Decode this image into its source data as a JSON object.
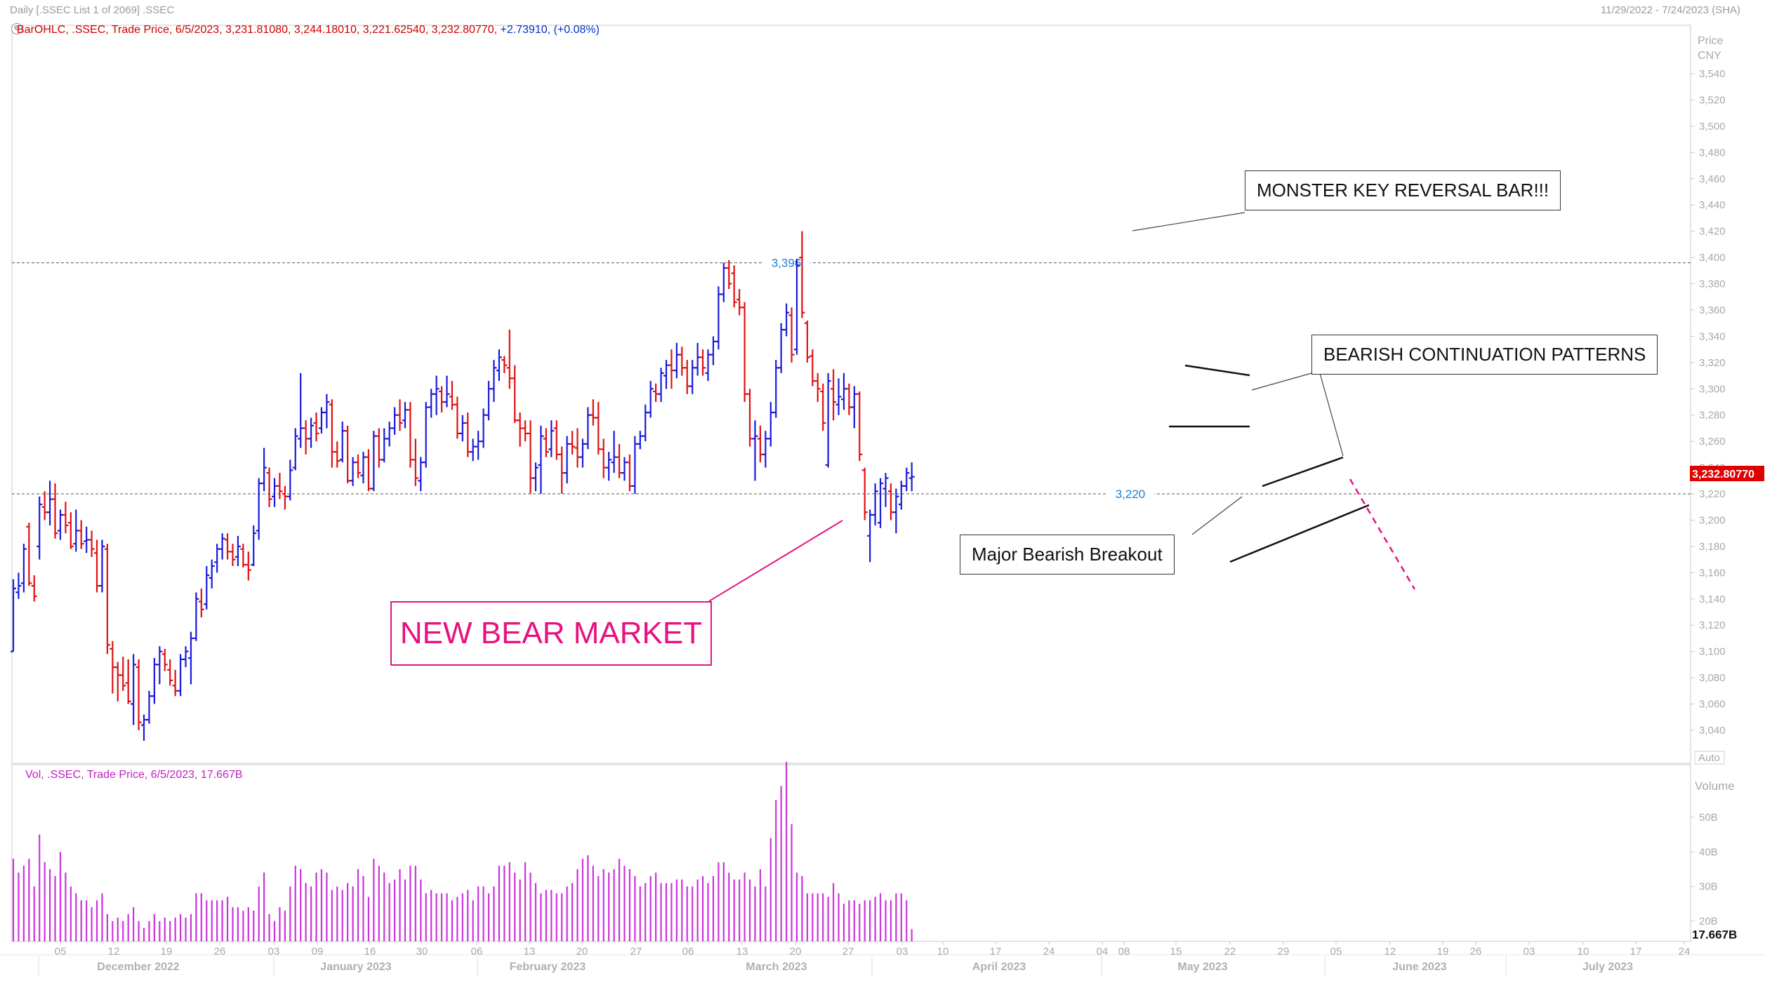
{
  "header": {
    "title": "Daily [.SSEC List 1 of 2069] .SSEC",
    "date_range": "11/29/2022 - 7/24/2023 (SHA)"
  },
  "price_panel": {
    "info": "BarOHLC, .SSEC, Trade Price, 6/5/2023, 3,231.81080, 3,244.18010, 3,221.62540, 3,232.80770,",
    "info_change": "+2.73910, (+0.08%)",
    "axis_title_1": "Price",
    "axis_title_2": "CNY",
    "auto_label": "Auto",
    "last_price_label": "3,232.80770",
    "level_labels": [
      "3,396",
      "3,220"
    ]
  },
  "volume_panel": {
    "info": "Vol, .SSEC, Trade Price, 6/5/2023, 17.667B",
    "axis_title": "Volume",
    "last_volume_label": "17.667B"
  },
  "annotations": {
    "monster": "MONSTER KEY REVERSAL BAR!!!",
    "bearish_cont": "BEARISH CONTINUATION PATTERNS",
    "breakout": "Major Bearish Breakout",
    "bear_market": "NEW BEAR MARKET"
  },
  "colors": {
    "up": "#1a1adc",
    "down": "#e01010",
    "volume": "#cc33dd",
    "accent": "#e8117f",
    "level_label": "#1a7fd4",
    "last_price_bg": "#e00000"
  },
  "chart_data": [
    {
      "type": "ohlc",
      "title": "Daily .SSEC",
      "ylabel": "Price CNY",
      "ylim": [
        3020,
        3560
      ],
      "y_ticks": [
        3040,
        3060,
        3080,
        3100,
        3120,
        3140,
        3160,
        3180,
        3200,
        3220,
        3240,
        3260,
        3280,
        3300,
        3320,
        3340,
        3360,
        3380,
        3400,
        3420,
        3440,
        3460,
        3480,
        3500,
        3520,
        3540
      ],
      "y_tick_labels": [
        "3,040",
        "3,060",
        "3,080",
        "3,100",
        "3,120",
        "3,140",
        "3,160",
        "3,180",
        "3,200",
        "3,220",
        "3,240",
        "3,260",
        "3,280",
        "3,300",
        "3,320",
        "3,340",
        "3,360",
        "3,380",
        "3,400",
        "3,420",
        "3,440",
        "3,460",
        "3,480",
        "3,500",
        "3,520",
        "3,540"
      ],
      "x_tick_labels": [
        "05",
        "12",
        "19",
        "26",
        "03",
        "09",
        "16",
        "30",
        "06",
        "13",
        "20",
        "27",
        "06",
        "13",
        "20",
        "27",
        "03",
        "10",
        "17",
        "24",
        "04",
        "08",
        "15",
        "22",
        "29",
        "05",
        "12",
        "19",
        "26",
        "03",
        "10",
        "17",
        "24"
      ],
      "month_labels": [
        "December 2022",
        "January 2023",
        "February 2023",
        "March 2023",
        "April 2023",
        "May 2023",
        "June 2023",
        "July 2023"
      ],
      "horizontal_levels": [
        3396,
        3220
      ],
      "bars": [
        [
          3100,
          3155,
          3100,
          3148
        ],
        [
          3145,
          3160,
          3140,
          3150
        ],
        [
          3152,
          3182,
          3145,
          3178
        ],
        [
          3195,
          3198,
          3150,
          3152
        ],
        [
          3150,
          3158,
          3138,
          3142
        ],
        [
          3180,
          3218,
          3170,
          3212
        ],
        [
          3210,
          3222,
          3200,
          3206
        ],
        [
          3206,
          3230,
          3196,
          3216
        ],
        [
          3216,
          3228,
          3186,
          3190
        ],
        [
          3192,
          3208,
          3185,
          3204
        ],
        [
          3204,
          3214,
          3190,
          3196
        ],
        [
          3198,
          3206,
          3178,
          3180
        ],
        [
          3182,
          3208,
          3176,
          3192
        ],
        [
          3192,
          3200,
          3178,
          3182
        ],
        [
          3184,
          3195,
          3175,
          3185
        ],
        [
          3185,
          3192,
          3172,
          3178
        ],
        [
          3175,
          3185,
          3145,
          3150
        ],
        [
          3150,
          3185,
          3145,
          3180
        ],
        [
          3178,
          3182,
          3098,
          3105
        ],
        [
          3102,
          3108,
          3068,
          3088
        ],
        [
          3088,
          3092,
          3062,
          3082
        ],
        [
          3082,
          3096,
          3070,
          3074
        ],
        [
          3076,
          3094,
          3060,
          3062
        ],
        [
          3060,
          3098,
          3044,
          3090
        ],
        [
          3088,
          3094,
          3040,
          3046
        ],
        [
          3044,
          3052,
          3032,
          3048
        ],
        [
          3048,
          3070,
          3045,
          3066
        ],
        [
          3066,
          3095,
          3060,
          3090
        ],
        [
          3090,
          3104,
          3075,
          3100
        ],
        [
          3098,
          3102,
          3085,
          3090
        ],
        [
          3086,
          3094,
          3074,
          3078
        ],
        [
          3074,
          3086,
          3066,
          3070
        ],
        [
          3070,
          3098,
          3066,
          3094
        ],
        [
          3094,
          3104,
          3088,
          3100
        ],
        [
          3095,
          3115,
          3075,
          3110
        ],
        [
          3110,
          3145,
          3108,
          3140
        ],
        [
          3138,
          3148,
          3126,
          3132
        ],
        [
          3136,
          3165,
          3132,
          3158
        ],
        [
          3156,
          3170,
          3148,
          3165
        ],
        [
          3168,
          3182,
          3160,
          3178
        ],
        [
          3178,
          3190,
          3170,
          3186
        ],
        [
          3185,
          3190,
          3170,
          3176
        ],
        [
          3176,
          3182,
          3165,
          3170
        ],
        [
          3172,
          3188,
          3165,
          3180
        ],
        [
          3178,
          3182,
          3164,
          3166
        ],
        [
          3166,
          3176,
          3154,
          3162
        ],
        [
          3166,
          3196,
          3165,
          3190
        ],
        [
          3192,
          3232,
          3185,
          3228
        ],
        [
          3228,
          3255,
          3222,
          3240
        ],
        [
          3236,
          3240,
          3210,
          3216
        ],
        [
          3218,
          3232,
          3210,
          3226
        ],
        [
          3226,
          3236,
          3216,
          3222
        ],
        [
          3220,
          3226,
          3208,
          3218
        ],
        [
          3218,
          3246,
          3215,
          3238
        ],
        [
          3240,
          3270,
          3238,
          3264
        ],
        [
          3262,
          3312,
          3255,
          3270
        ],
        [
          3270,
          3276,
          3250,
          3262
        ],
        [
          3262,
          3278,
          3255,
          3272
        ],
        [
          3274,
          3282,
          3260,
          3266
        ],
        [
          3270,
          3286,
          3266,
          3282
        ],
        [
          3282,
          3296,
          3270,
          3290
        ],
        [
          3288,
          3292,
          3240,
          3252
        ],
        [
          3252,
          3260,
          3240,
          3245
        ],
        [
          3246,
          3275,
          3244,
          3268
        ],
        [
          3268,
          3272,
          3228,
          3230
        ],
        [
          3230,
          3248,
          3226,
          3244
        ],
        [
          3244,
          3250,
          3232,
          3236
        ],
        [
          3234,
          3252,
          3228,
          3248
        ],
        [
          3248,
          3254,
          3222,
          3224
        ],
        [
          3224,
          3268,
          3222,
          3264
        ],
        [
          3264,
          3270,
          3240,
          3246
        ],
        [
          3246,
          3270,
          3244,
          3262
        ],
        [
          3262,
          3275,
          3256,
          3270
        ],
        [
          3270,
          3286,
          3265,
          3280
        ],
        [
          3280,
          3292,
          3268,
          3274
        ],
        [
          3276,
          3290,
          3270,
          3284
        ],
        [
          3284,
          3290,
          3240,
          3246
        ],
        [
          3246,
          3262,
          3226,
          3232
        ],
        [
          3230,
          3248,
          3222,
          3244
        ],
        [
          3244,
          3290,
          3240,
          3286
        ],
        [
          3286,
          3300,
          3278,
          3296
        ],
        [
          3296,
          3310,
          3280,
          3300
        ],
        [
          3298,
          3302,
          3282,
          3290
        ],
        [
          3290,
          3310,
          3286,
          3296
        ],
        [
          3294,
          3306,
          3284,
          3288
        ],
        [
          3288,
          3294,
          3262,
          3266
        ],
        [
          3266,
          3280,
          3260,
          3274
        ],
        [
          3274,
          3282,
          3248,
          3252
        ],
        [
          3252,
          3262,
          3245,
          3256
        ],
        [
          3256,
          3268,
          3246,
          3260
        ],
        [
          3260,
          3285,
          3255,
          3280
        ],
        [
          3280,
          3306,
          3276,
          3300
        ],
        [
          3300,
          3322,
          3290,
          3316
        ],
        [
          3314,
          3330,
          3306,
          3324
        ],
        [
          3322,
          3325,
          3312,
          3318
        ],
        [
          3316,
          3345,
          3300,
          3308
        ],
        [
          3308,
          3318,
          3274,
          3276
        ],
        [
          3276,
          3282,
          3256,
          3270
        ],
        [
          3270,
          3276,
          3260,
          3266
        ],
        [
          3266,
          3276,
          3220,
          3232
        ],
        [
          3232,
          3244,
          3222,
          3240
        ],
        [
          3242,
          3272,
          3220,
          3264
        ],
        [
          3262,
          3270,
          3248,
          3252
        ],
        [
          3254,
          3276,
          3248,
          3268
        ],
        [
          3270,
          3276,
          3246,
          3250
        ],
        [
          3250,
          3256,
          3220,
          3236
        ],
        [
          3236,
          3264,
          3228,
          3258
        ],
        [
          3258,
          3268,
          3250,
          3256
        ],
        [
          3255,
          3270,
          3240,
          3248
        ],
        [
          3248,
          3262,
          3240,
          3258
        ],
        [
          3258,
          3286,
          3254,
          3280
        ],
        [
          3280,
          3292,
          3272,
          3278
        ],
        [
          3278,
          3290,
          3250,
          3254
        ],
        [
          3254,
          3262,
          3232,
          3240
        ],
        [
          3240,
          3252,
          3230,
          3246
        ],
        [
          3244,
          3268,
          3236,
          3248
        ],
        [
          3248,
          3258,
          3232,
          3236
        ],
        [
          3236,
          3248,
          3230,
          3244
        ],
        [
          3244,
          3250,
          3222,
          3226
        ],
        [
          3226,
          3264,
          3220,
          3258
        ],
        [
          3258,
          3268,
          3254,
          3264
        ],
        [
          3264,
          3288,
          3260,
          3282
        ],
        [
          3282,
          3306,
          3278,
          3300
        ],
        [
          3298,
          3304,
          3290,
          3296
        ],
        [
          3296,
          3316,
          3290,
          3312
        ],
        [
          3310,
          3322,
          3300,
          3318
        ],
        [
          3318,
          3330,
          3300,
          3314
        ],
        [
          3314,
          3335,
          3308,
          3326
        ],
        [
          3326,
          3332,
          3310,
          3316
        ],
        [
          3316,
          3322,
          3296,
          3302
        ],
        [
          3302,
          3322,
          3296,
          3316
        ],
        [
          3316,
          3335,
          3310,
          3324
        ],
        [
          3324,
          3330,
          3310,
          3316
        ],
        [
          3312,
          3330,
          3306,
          3326
        ],
        [
          3326,
          3340,
          3318,
          3336
        ],
        [
          3336,
          3378,
          3330,
          3372
        ],
        [
          3372,
          3396,
          3366,
          3392
        ],
        [
          3392,
          3398,
          3376,
          3380
        ],
        [
          3388,
          3394,
          3362,
          3366
        ],
        [
          3368,
          3376,
          3356,
          3362
        ],
        [
          3362,
          3366,
          3290,
          3296
        ],
        [
          3296,
          3300,
          3256,
          3262
        ],
        [
          3262,
          3276,
          3230,
          3264
        ],
        [
          3262,
          3272,
          3244,
          3250
        ],
        [
          3250,
          3268,
          3240,
          3262
        ],
        [
          3262,
          3290,
          3256,
          3282
        ],
        [
          3282,
          3322,
          3278,
          3316
        ],
        [
          3316,
          3350,
          3312,
          3345
        ],
        [
          3345,
          3365,
          3340,
          3358
        ],
        [
          3356,
          3362,
          3320,
          3326
        ],
        [
          3330,
          3399,
          3326,
          3394
        ],
        [
          3400,
          3420,
          3354,
          3358
        ],
        [
          3350,
          3352,
          3320,
          3324
        ],
        [
          3325,
          3330,
          3302,
          3306
        ],
        [
          3306,
          3312,
          3290,
          3300
        ],
        [
          3298,
          3304,
          3268,
          3274
        ],
        [
          3242,
          3312,
          3240,
          3306
        ],
        [
          3300,
          3315,
          3276,
          3290
        ],
        [
          3288,
          3308,
          3280,
          3294
        ],
        [
          3292,
          3312,
          3284,
          3300
        ],
        [
          3300,
          3304,
          3280,
          3286
        ],
        [
          3286,
          3302,
          3270,
          3296
        ],
        [
          3296,
          3298,
          3245,
          3250
        ],
        [
          3238,
          3240,
          3200,
          3206
        ],
        [
          3188,
          3208,
          3168,
          3204
        ],
        [
          3204,
          3228,
          3196,
          3222
        ],
        [
          3198,
          3232,
          3194,
          3228
        ],
        [
          3224,
          3236,
          3210,
          3232
        ],
        [
          3222,
          3228,
          3200,
          3206
        ],
        [
          3206,
          3224,
          3190,
          3218
        ],
        [
          3212,
          3230,
          3208,
          3226
        ],
        [
          3226,
          3240,
          3222,
          3236
        ],
        [
          3232,
          3244,
          3222,
          3233
        ]
      ]
    },
    {
      "type": "bar",
      "title": "Vol, .SSEC",
      "ylabel": "Volume",
      "unit": "B",
      "ylim": [
        0,
        70
      ],
      "y_ticks": [
        20,
        30,
        40,
        50
      ],
      "y_tick_labels": [
        "20B",
        "30B",
        "40B",
        "50B"
      ],
      "values": [
        38,
        34,
        36,
        38,
        30,
        45,
        37,
        35,
        33,
        40,
        34,
        30,
        28,
        26,
        26,
        24,
        26,
        28,
        22,
        20,
        21,
        20,
        22,
        24,
        20,
        18,
        20,
        22,
        20,
        21,
        20,
        21,
        22,
        21,
        22,
        28,
        28,
        26,
        26,
        26,
        26,
        27,
        24,
        24,
        23,
        24,
        23,
        30,
        34,
        22,
        20,
        24,
        23,
        30,
        36,
        35,
        31,
        30,
        34,
        35,
        34,
        29,
        30,
        29,
        31,
        30,
        35,
        33,
        27,
        38,
        36,
        34,
        31,
        32,
        35,
        32,
        36,
        36,
        32,
        28,
        29,
        28,
        28,
        28,
        26,
        27,
        28,
        29,
        26,
        30,
        30,
        28,
        30,
        36,
        36,
        37,
        34,
        32,
        37,
        34,
        31,
        28,
        29,
        29,
        28,
        28,
        30,
        31,
        35,
        38,
        39,
        36,
        33,
        35,
        34,
        35,
        38,
        36,
        35,
        33,
        30,
        31,
        33,
        34,
        31,
        31,
        31,
        32,
        32,
        30,
        30,
        32,
        33,
        31,
        33,
        37,
        37,
        34,
        32,
        32,
        34,
        32,
        30,
        35,
        30,
        44,
        55,
        59,
        66,
        48,
        34,
        33,
        28,
        28,
        28,
        28,
        27,
        31,
        28,
        25,
        26,
        26,
        25,
        26,
        26,
        27,
        28,
        26,
        26,
        28,
        28,
        26,
        17.667
      ]
    }
  ]
}
